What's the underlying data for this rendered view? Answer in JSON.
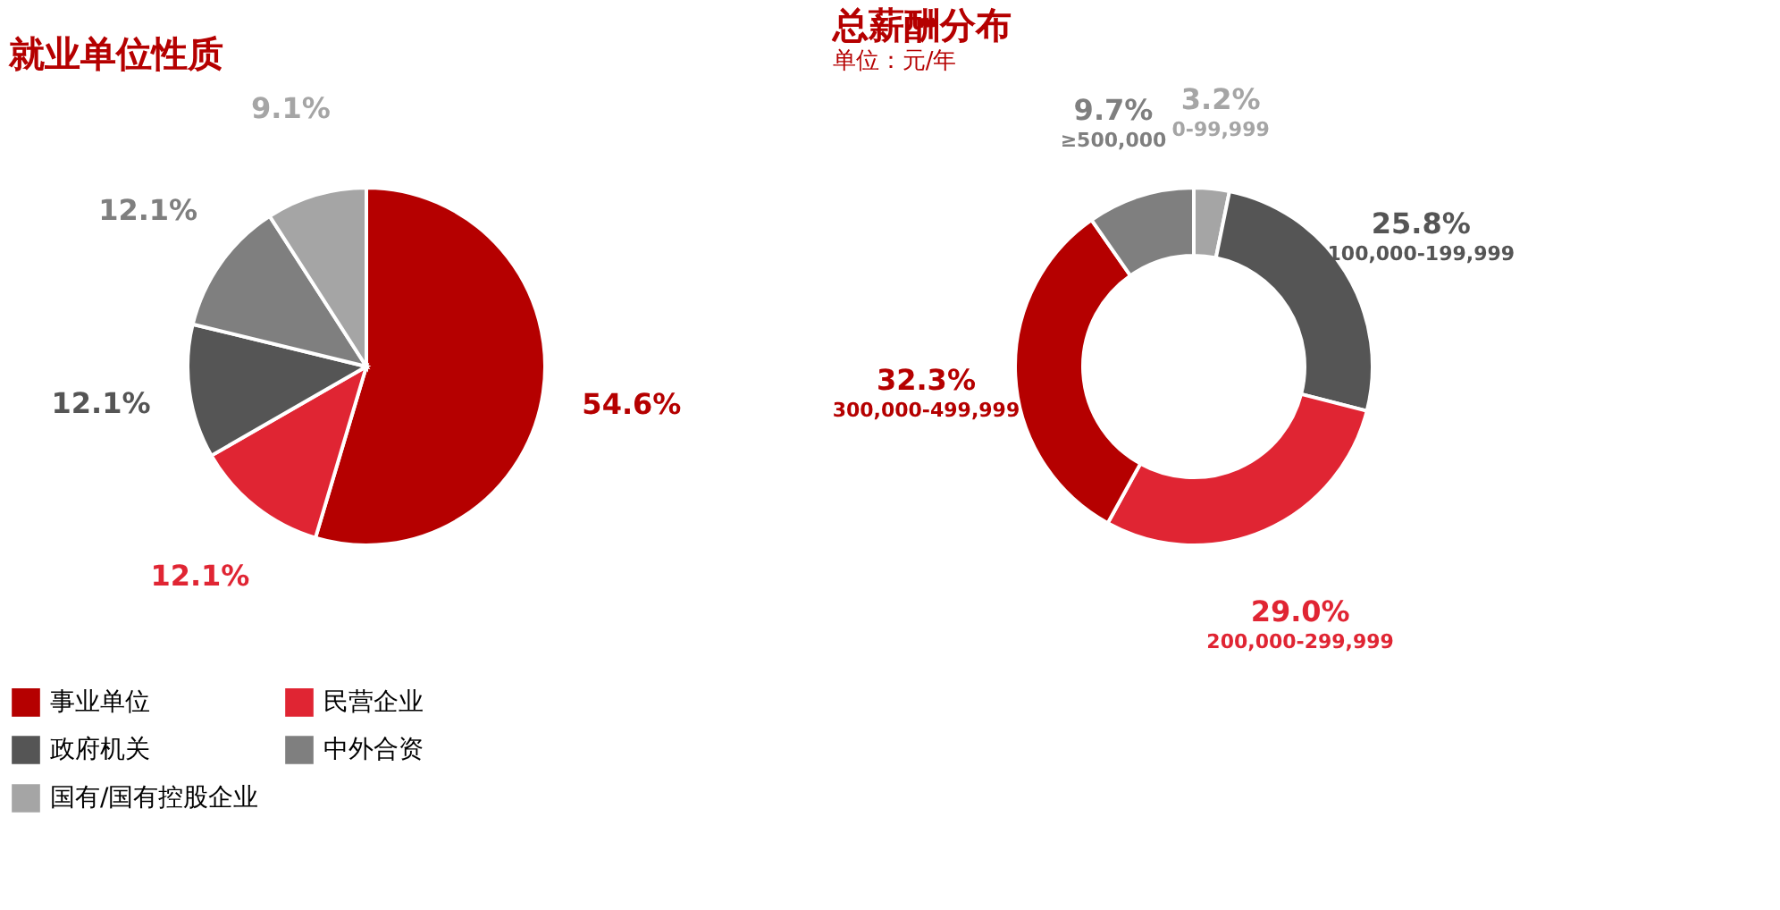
{
  "chart_data": [
    {
      "type": "pie",
      "title": "就业单位性质",
      "categories": [
        "事业单位",
        "民营企业",
        "政府机关",
        "中外合资",
        "国有/国有控股企业"
      ],
      "values": [
        54.6,
        12.1,
        12.1,
        12.1,
        9.1
      ],
      "colors": [
        "#b50000",
        "#e02533",
        "#555555",
        "#7f7f7f",
        "#a5a5a5"
      ],
      "value_labels": [
        "54.6%",
        "12.1%",
        "12.1%",
        "12.1%",
        "9.1%"
      ],
      "legend": "bottom"
    },
    {
      "type": "donut",
      "title": "总薪酬分布",
      "subtitle": "单位：元/年",
      "categories": [
        "0-99,999",
        "100,000-199,999",
        "200,000-299,999",
        "300,000-499,999",
        "≥500,000"
      ],
      "values": [
        3.2,
        25.8,
        29.0,
        32.3,
        9.7
      ],
      "colors": [
        "#a5a5a5",
        "#555555",
        "#e02533",
        "#b50000",
        "#7f7f7f"
      ],
      "value_labels": [
        "3.2%",
        "25.8%",
        "29.0%",
        "32.3%",
        "9.7%"
      ],
      "legend": false
    }
  ]
}
